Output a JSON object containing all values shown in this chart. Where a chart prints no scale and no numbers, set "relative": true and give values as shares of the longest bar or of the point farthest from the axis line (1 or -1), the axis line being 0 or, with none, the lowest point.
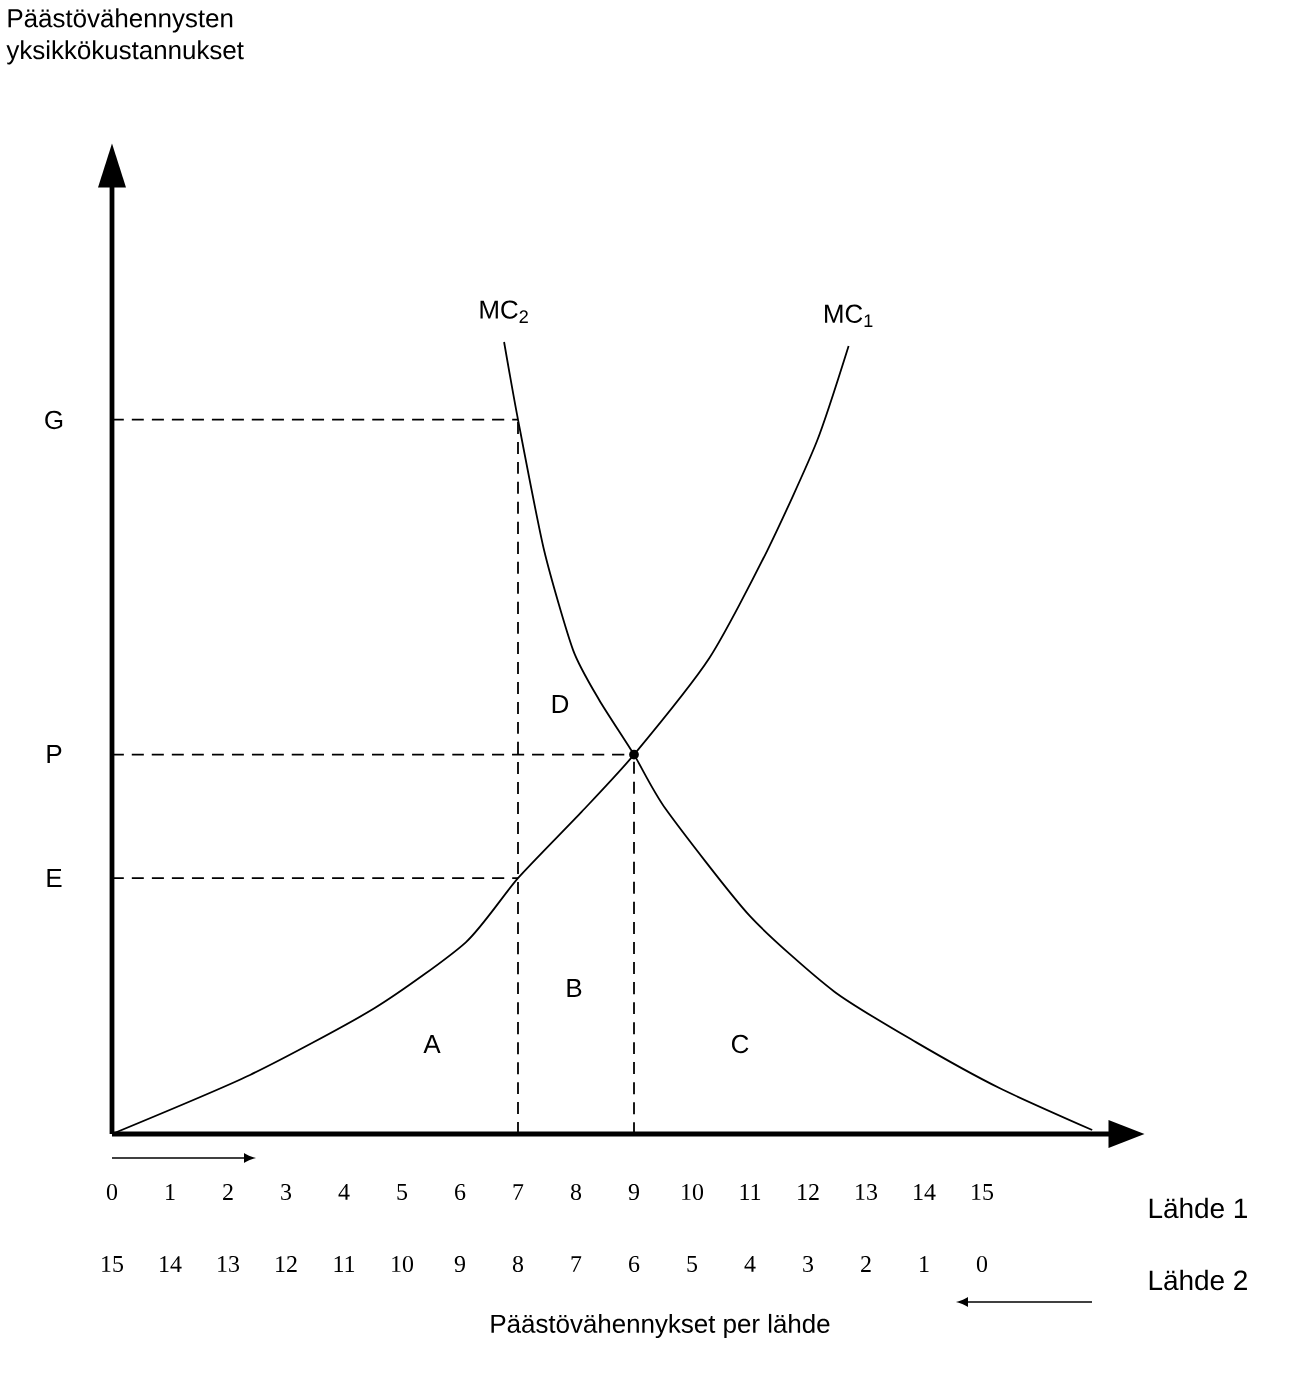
{
  "chart_data": {
    "type": "line",
    "relative": true,
    "xlabel": "Lähde 1",
    "x2label": "Lähde 2",
    "xlim": [
      0,
      17.25
    ],
    "xticks": [
      0,
      1,
      2,
      3,
      4,
      5,
      6,
      7,
      8,
      9,
      10,
      11,
      12,
      13,
      14,
      15
    ],
    "x2lim": [
      15,
      0
    ],
    "x2ticks": [
      15,
      14,
      13,
      12,
      11,
      10,
      9,
      8,
      7,
      6,
      5,
      4,
      3,
      2,
      1,
      0
    ],
    "series": [
      {
        "name": "MC$_{1}$",
        "color": "#000000",
        "x": [
          0,
          2.38,
          4.53,
          6.1,
          7,
          8.1,
          9,
          10.3,
          11.3,
          12.15,
          12.7
        ],
        "values": [
          0,
          0.0745,
          0.159,
          0.242,
          0.323,
          0.407,
          0.479,
          0.601,
          0.737,
          0.874,
          0.995
        ]
      },
      {
        "name": "MC$_{2}$",
        "color": "#000000",
        "x": [
          6.76,
          7,
          7.45,
          7.95,
          8.4,
          9,
          9.55,
          11,
          12.45,
          13.86,
          15.3,
          16.9
        ],
        "values": [
          1,
          0.902,
          0.737,
          0.611,
          0.548,
          0.479,
          0.41,
          0.275,
          0.18,
          0.116,
          0.058,
          0.005
        ]
      },
      {
        "color": "#000000",
        "line_style": "dashed",
        "x": [
          0,
          7
        ],
        "values": [
          0.902,
          0.902
        ]
      },
      {
        "color": "#000000",
        "line_style": "dashed",
        "x": [
          7,
          7
        ],
        "values": [
          0,
          0.902
        ]
      },
      {
        "color": "#000000",
        "line_style": "dashed",
        "x": [
          0,
          9
        ],
        "values": [
          0.479,
          0.479
        ]
      },
      {
        "color": "#000000",
        "line_style": "dashed",
        "x": [
          9,
          9
        ],
        "values": [
          0,
          0.479
        ]
      },
      {
        "color": "#000000",
        "line_style": "dashed",
        "x": [
          0,
          7
        ],
        "values": [
          0.323,
          0.323
        ]
      },
      {
        "type": "scatter",
        "marker": "circle",
        "color": "#000000",
        "x": [
          9
        ],
        "values": [
          0.479
        ]
      }
    ],
    "annotations": [
      "G",
      "P",
      "E",
      "A",
      "B",
      "C",
      "D",
      "Päästövähennykset per lähde",
      "Päästövähennysten yksikkökustannukset"
    ]
  }
}
